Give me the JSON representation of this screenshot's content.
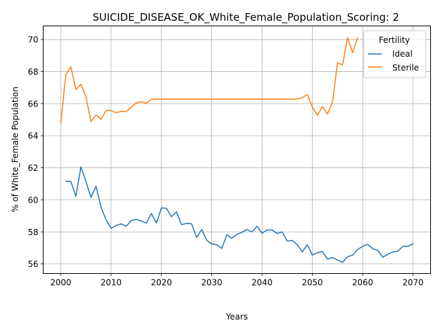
{
  "chart_data": {
    "type": "line",
    "title": "SUICIDE_DISEASE_OK_White_Female_Population_Scoring: 2",
    "xlabel": "Years",
    "ylabel": "% of White_Female Population",
    "xlim": [
      1996.5,
      2073.5
    ],
    "ylim": [
      55.4,
      70.85
    ],
    "xticks": [
      2000,
      2010,
      2020,
      2030,
      2040,
      2050,
      2060,
      2070
    ],
    "yticks": [
      56,
      58,
      60,
      62,
      64,
      66,
      68,
      70
    ],
    "grid": true,
    "legend": {
      "title": "Fertility",
      "placement": "top-right"
    },
    "series": [
      {
        "name": "Ideal",
        "color": "#1f77b4",
        "x": [
          2001,
          2002,
          2003,
          2004,
          2005,
          2006,
          2007,
          2008,
          2009,
          2010,
          2011,
          2012,
          2013,
          2014,
          2015,
          2016,
          2017,
          2018,
          2019,
          2020,
          2021,
          2022,
          2023,
          2024,
          2025,
          2026,
          2027,
          2028,
          2029,
          2030,
          2031,
          2032,
          2033,
          2034,
          2035,
          2036,
          2037,
          2038,
          2039,
          2040,
          2041,
          2042,
          2043,
          2044,
          2045,
          2046,
          2047,
          2048,
          2049,
          2050,
          2051,
          2052,
          2053,
          2054,
          2055,
          2056,
          2057,
          2058,
          2059,
          2060,
          2061,
          2062,
          2063,
          2064,
          2065,
          2066,
          2067,
          2068,
          2069,
          2070
        ],
        "y": [
          61.15,
          61.15,
          60.22,
          62.05,
          61.15,
          60.15,
          60.85,
          59.55,
          58.75,
          58.22,
          58.4,
          58.5,
          58.35,
          58.7,
          58.78,
          58.68,
          58.55,
          59.15,
          58.55,
          59.5,
          59.47,
          58.95,
          59.25,
          58.45,
          58.53,
          58.5,
          57.65,
          58.15,
          57.48,
          57.25,
          57.2,
          56.97,
          57.82,
          57.6,
          57.85,
          57.97,
          58.15,
          58.0,
          58.35,
          57.92,
          58.12,
          58.12,
          57.9,
          58.0,
          57.42,
          57.47,
          57.2,
          56.75,
          57.2,
          56.55,
          56.7,
          56.78,
          56.3,
          56.4,
          56.25,
          56.1,
          56.45,
          56.55,
          56.9,
          57.1,
          57.22,
          56.95,
          56.85,
          56.42,
          56.6,
          56.75,
          56.8,
          57.1,
          57.1,
          57.25
        ]
      },
      {
        "name": "Sterile",
        "color": "#ff7f0e",
        "x": [
          2000,
          2001,
          2002,
          2003,
          2004,
          2005,
          2006,
          2007,
          2008,
          2009,
          2010,
          2011,
          2012,
          2013,
          2014,
          2015,
          2016,
          2017,
          2018,
          2019,
          2020,
          2021,
          2022,
          2023,
          2024,
          2025,
          2026,
          2027,
          2028,
          2029,
          2030,
          2031,
          2032,
          2033,
          2034,
          2035,
          2036,
          2037,
          2038,
          2039,
          2040,
          2041,
          2042,
          2043,
          2044,
          2045,
          2046,
          2047,
          2048,
          2049,
          2050,
          2051,
          2052,
          2053,
          2054,
          2055,
          2056,
          2057,
          2058,
          2059
        ],
        "y": [
          64.8,
          67.8,
          68.3,
          66.88,
          67.22,
          66.45,
          64.88,
          65.3,
          65.02,
          65.58,
          65.58,
          65.43,
          65.52,
          65.5,
          65.78,
          66.05,
          66.12,
          66.03,
          66.28,
          66.28,
          66.28,
          66.28,
          66.28,
          66.28,
          66.28,
          66.28,
          66.28,
          66.28,
          66.28,
          66.28,
          66.28,
          66.28,
          66.28,
          66.28,
          66.28,
          66.28,
          66.28,
          66.28,
          66.28,
          66.28,
          66.28,
          66.28,
          66.28,
          66.28,
          66.28,
          66.28,
          66.28,
          66.28,
          66.38,
          66.57,
          65.77,
          65.27,
          65.82,
          65.35,
          66.08,
          68.55,
          68.42,
          70.12,
          69.18,
          70.12
        ]
      }
    ]
  }
}
